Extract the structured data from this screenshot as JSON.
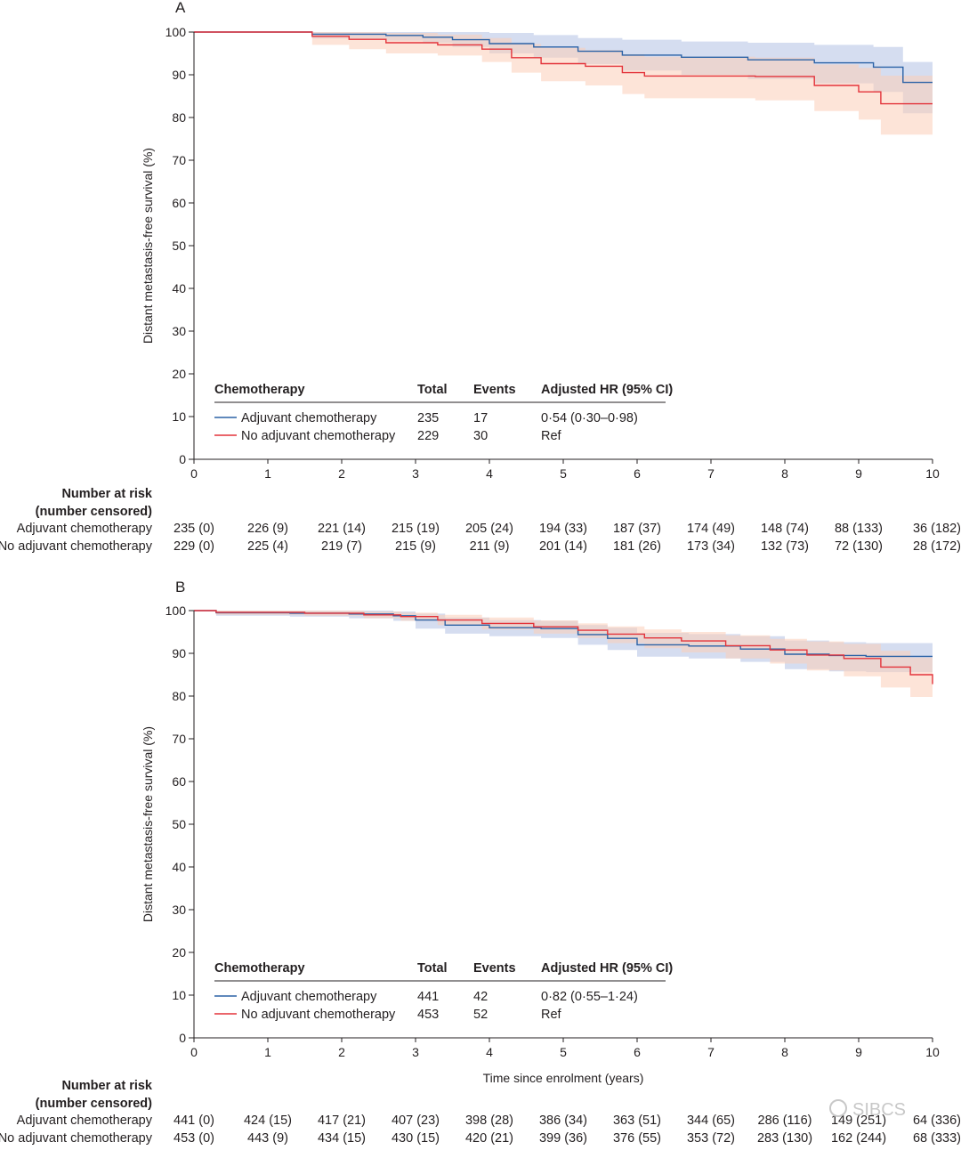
{
  "watermark": "SIBCS",
  "colors": {
    "adjuvant": "#2b62a6",
    "no_adjuvant": "#e3333a",
    "adjuvant_band": "#b9c7e6",
    "no_adjuvant_band": "#fbcdb8",
    "axis": "#231f20"
  },
  "chart_data": [
    {
      "type": "line",
      "panel": "A",
      "ylabel": "Distant metastasis-free survival (%)",
      "xlabel": "",
      "xlim": [
        0,
        10
      ],
      "ylim": [
        0,
        100
      ],
      "xticks": [
        "0",
        "1",
        "2",
        "3",
        "4",
        "5",
        "6",
        "7",
        "8",
        "9",
        "10"
      ],
      "yticks": [
        "0",
        "10",
        "20",
        "30",
        "40",
        "50",
        "60",
        "70",
        "80",
        "90",
        "100"
      ],
      "series": [
        {
          "name": "Adjuvant chemotherapy",
          "step": true,
          "x": [
            0,
            1.6,
            2.6,
            3.1,
            3.5,
            4.0,
            4.6,
            5.2,
            5.8,
            6.6,
            7.5,
            8.4,
            9.2,
            9.6,
            10
          ],
          "y": [
            100,
            99.5,
            99.2,
            98.8,
            98.2,
            97.3,
            96.5,
            95.5,
            94.6,
            94.1,
            93.5,
            92.8,
            91.8,
            88.2,
            88.2
          ],
          "lower": [
            100,
            98.5,
            98.0,
            97.5,
            96.5,
            95.0,
            94.0,
            92.5,
            91.0,
            90.0,
            89.0,
            88.0,
            86.0,
            81.0,
            80.5
          ],
          "upper": [
            100,
            100,
            100,
            100,
            100,
            99.8,
            99.3,
            98.6,
            98.2,
            97.8,
            97.5,
            97.0,
            96.5,
            93.0,
            93.0
          ]
        },
        {
          "name": "No adjuvant chemotherapy",
          "step": true,
          "x": [
            0,
            1.6,
            2.1,
            2.6,
            3.3,
            3.9,
            4.3,
            4.7,
            5.3,
            5.8,
            6.1,
            7.6,
            8.4,
            9.0,
            9.3,
            10
          ],
          "y": [
            100,
            99.0,
            98.3,
            97.5,
            97.0,
            96.0,
            94.0,
            92.6,
            92.0,
            90.5,
            89.7,
            89.6,
            87.5,
            86.0,
            83.2,
            83.2
          ],
          "lower": [
            100,
            97.0,
            96.0,
            95.0,
            94.5,
            93.0,
            90.5,
            88.5,
            87.5,
            85.5,
            84.5,
            84.0,
            81.5,
            79.5,
            76.0,
            76.0
          ],
          "upper": [
            100,
            100,
            100,
            99.8,
            99.4,
            98.6,
            97.2,
            96.3,
            95.8,
            94.8,
            94.2,
            94.0,
            92.4,
            91.6,
            89.8,
            89.8
          ]
        }
      ],
      "table": {
        "headers": [
          "Chemotherapy",
          "Total",
          "Events",
          "Adjusted HR (95% CI)"
        ],
        "rows": [
          {
            "label": "Adjuvant chemotherapy",
            "total": "235",
            "events": "17",
            "hr": "0·54 (0·30–0·98)"
          },
          {
            "label": "No adjuvant chemotherapy",
            "total": "229",
            "events": "30",
            "hr": "Ref"
          }
        ]
      },
      "risk": {
        "title_line1": "Number at risk",
        "title_line2": "(number censored)",
        "rows": [
          {
            "label": "Adjuvant chemotherapy",
            "values": [
              "235 (0)",
              "226 (9)",
              "221 (14)",
              "215 (19)",
              "205 (24)",
              "194 (33)",
              "187 (37)",
              "174 (49)",
              "148 (74)",
              "88 (133)",
              "36 (182)"
            ]
          },
          {
            "label": "No adjuvant chemotherapy",
            "values": [
              "229 (0)",
              "225 (4)",
              "219 (7)",
              "215 (9)",
              "211 (9)",
              "201 (14)",
              "181 (26)",
              "173 (34)",
              "132 (73)",
              "72 (130)",
              "28 (172)"
            ]
          }
        ]
      }
    },
    {
      "type": "line",
      "panel": "B",
      "ylabel": "Distant metastasis-free survival (%)",
      "xlabel": "Time since enrolment (years)",
      "xlim": [
        0,
        10
      ],
      "ylim": [
        0,
        100
      ],
      "xticks": [
        "0",
        "1",
        "2",
        "3",
        "4",
        "5",
        "6",
        "7",
        "8",
        "9",
        "10"
      ],
      "yticks": [
        "0",
        "10",
        "20",
        "30",
        "40",
        "50",
        "60",
        "70",
        "80",
        "90",
        "100"
      ],
      "series": [
        {
          "name": "Adjuvant chemotherapy",
          "step": true,
          "x": [
            0,
            0.3,
            1.3,
            2.1,
            2.7,
            3.0,
            3.4,
            4.0,
            4.7,
            5.2,
            5.6,
            6.0,
            6.7,
            7.4,
            8.0,
            8.6,
            9.1,
            10
          ],
          "y": [
            100,
            99.5,
            99.4,
            99.2,
            98.8,
            97.8,
            96.6,
            96.0,
            95.8,
            94.4,
            93.5,
            92.0,
            91.7,
            91.0,
            89.8,
            89.5,
            89.3,
            89.3
          ],
          "lower": [
            100,
            98.8,
            98.6,
            98.2,
            97.6,
            95.8,
            94.6,
            94.0,
            93.6,
            92.0,
            90.8,
            89.2,
            88.8,
            88.0,
            86.3,
            85.8,
            85.6,
            85.6
          ],
          "upper": [
            100,
            100,
            100,
            100,
            99.8,
            99.3,
            98.4,
            97.8,
            97.6,
            96.6,
            96.0,
            94.8,
            94.5,
            94.0,
            93.0,
            92.6,
            92.4,
            92.4
          ]
        },
        {
          "name": "No adjuvant chemotherapy",
          "step": true,
          "x": [
            0,
            0.3,
            1.5,
            2.3,
            2.8,
            3.3,
            3.9,
            4.6,
            5.2,
            5.6,
            6.1,
            6.6,
            7.2,
            7.8,
            8.3,
            8.8,
            9.3,
            9.7,
            10
          ],
          "y": [
            100,
            99.6,
            99.4,
            99.0,
            98.6,
            97.8,
            97.0,
            96.2,
            95.4,
            94.5,
            93.6,
            92.9,
            91.8,
            90.8,
            89.6,
            88.8,
            86.8,
            85.0,
            82.8
          ],
          "lower": [
            100,
            99.0,
            98.8,
            98.2,
            97.6,
            96.6,
            95.6,
            94.6,
            93.6,
            92.4,
            91.2,
            90.2,
            88.8,
            87.6,
            86.0,
            84.6,
            82.0,
            79.8,
            77.4
          ],
          "upper": [
            100,
            100,
            100,
            99.8,
            99.5,
            99.0,
            98.4,
            97.7,
            97.0,
            96.3,
            95.6,
            95.0,
            94.2,
            93.4,
            92.8,
            92.2,
            90.6,
            89.0,
            87.6
          ]
        }
      ],
      "table": {
        "headers": [
          "Chemotherapy",
          "Total",
          "Events",
          "Adjusted HR (95% CI)"
        ],
        "rows": [
          {
            "label": "Adjuvant chemotherapy",
            "total": "441",
            "events": "42",
            "hr": "0·82 (0·55–1·24)"
          },
          {
            "label": "No adjuvant chemotherapy",
            "total": "453",
            "events": "52",
            "hr": "Ref"
          }
        ]
      },
      "risk": {
        "title_line1": "Number at risk",
        "title_line2": "(number censored)",
        "rows": [
          {
            "label": "Adjuvant chemotherapy",
            "values": [
              "441 (0)",
              "424 (15)",
              "417 (21)",
              "407 (23)",
              "398 (28)",
              "386 (34)",
              "363 (51)",
              "344 (65)",
              "286 (116)",
              "149 (251)",
              "64 (336)"
            ]
          },
          {
            "label": "No adjuvant chemotherapy",
            "values": [
              "453 (0)",
              "443 (9)",
              "434 (15)",
              "430 (15)",
              "420 (21)",
              "399 (36)",
              "376 (55)",
              "353 (72)",
              "283 (130)",
              "162 (244)",
              "68 (333)"
            ]
          }
        ]
      }
    }
  ]
}
